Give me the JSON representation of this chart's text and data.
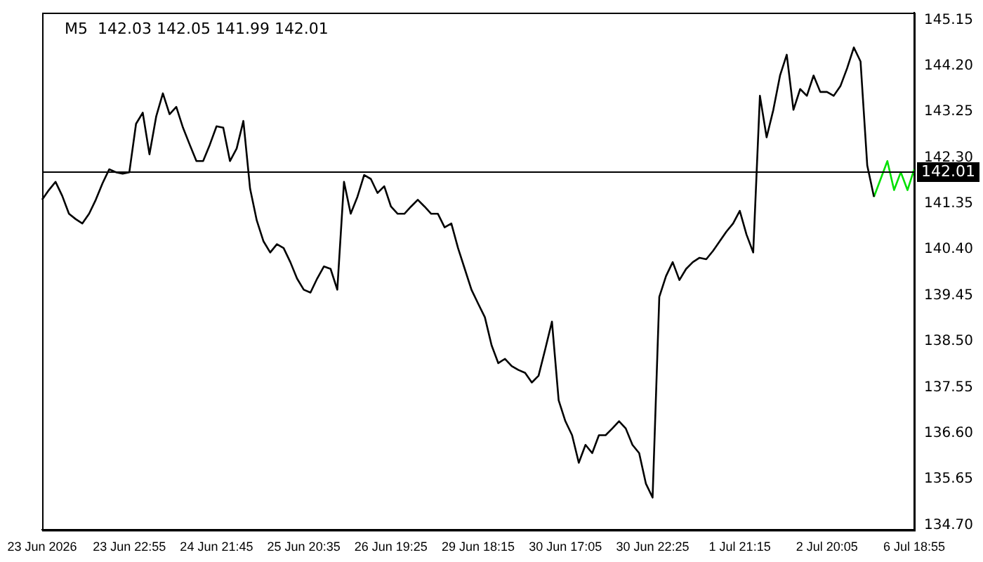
{
  "chart_data": {
    "type": "line",
    "title": "M5  142.03 142.05 141.99 142.01",
    "categories": [
      "23 Jun 2026",
      null,
      null,
      null,
      null,
      null,
      null,
      null,
      null,
      null,
      null,
      null,
      null,
      "23 Jun 22:55",
      null,
      null,
      null,
      null,
      null,
      null,
      null,
      null,
      null,
      null,
      null,
      null,
      "24 Jun 21:45",
      null,
      null,
      null,
      null,
      null,
      null,
      null,
      null,
      null,
      null,
      null,
      null,
      "25 Jun 20:35",
      null,
      null,
      null,
      null,
      null,
      null,
      null,
      null,
      null,
      null,
      null,
      null,
      "26 Jun 19:25",
      null,
      null,
      null,
      null,
      null,
      null,
      null,
      null,
      null,
      null,
      null,
      null,
      "29 Jun 18:15",
      null,
      null,
      null,
      null,
      null,
      null,
      null,
      null,
      null,
      null,
      null,
      null,
      "30 Jun 17:05",
      null,
      null,
      null,
      null,
      null,
      null,
      null,
      null,
      null,
      null,
      null,
      null,
      "30 Jun 22:25",
      null,
      null,
      null,
      null,
      null,
      null,
      null,
      null,
      null,
      null,
      null,
      null,
      "1 Jul 21:15",
      null,
      null,
      null,
      null,
      null,
      null,
      null,
      null,
      null,
      null,
      null,
      null,
      "2 Jul 20:05",
      null,
      null,
      null,
      null,
      null,
      null,
      null,
      null,
      null,
      null,
      null,
      null,
      "6 Jul 18:55"
    ],
    "series": [
      {
        "color": "#000000",
        "values": [
          141.43,
          141.63,
          141.8,
          141.51,
          141.14,
          141.03,
          140.94,
          141.14,
          141.43,
          141.77,
          142.06,
          142.0,
          141.97,
          142.0,
          143.0,
          143.23,
          142.37,
          143.15,
          143.63,
          143.2,
          143.35,
          142.92,
          142.57,
          142.23,
          142.23,
          142.57,
          142.95,
          142.92,
          142.23,
          142.49,
          143.06,
          141.66,
          141.0,
          140.57,
          140.34,
          140.51,
          140.43,
          140.14,
          139.8,
          139.57,
          139.51,
          139.8,
          140.05,
          140.0,
          139.57,
          141.8,
          141.14,
          141.49,
          141.94,
          141.86,
          141.57,
          141.71,
          141.29,
          141.14,
          141.14,
          141.29,
          141.43,
          141.29,
          141.14,
          141.14,
          140.86,
          140.94,
          140.43,
          140.0,
          139.57,
          139.28,
          139.0,
          138.42,
          138.05,
          138.14,
          137.99,
          137.91,
          137.85,
          137.65,
          137.79,
          138.34,
          138.91,
          137.28,
          136.85,
          136.56,
          135.99,
          136.36,
          136.19,
          136.56,
          136.56,
          136.7,
          136.85,
          136.7,
          136.36,
          136.19,
          135.56,
          135.27,
          139.42,
          139.85,
          140.14,
          139.77,
          140.0,
          140.14,
          140.23,
          140.2,
          140.37,
          140.57,
          140.77,
          140.94,
          141.2,
          140.71,
          140.34,
          143.58,
          142.72,
          143.29,
          144.0,
          144.43,
          143.29,
          143.72,
          143.58,
          144.0,
          143.66,
          143.66,
          143.58,
          143.78,
          144.15,
          144.58,
          144.29,
          142.14,
          141.49,
          null,
          null,
          null,
          null,
          null,
          null
        ]
      },
      {
        "color": "#00e000",
        "values": [
          null,
          null,
          null,
          null,
          null,
          null,
          null,
          null,
          null,
          null,
          null,
          null,
          null,
          null,
          null,
          null,
          null,
          null,
          null,
          null,
          null,
          null,
          null,
          null,
          null,
          null,
          null,
          null,
          null,
          null,
          null,
          null,
          null,
          null,
          null,
          null,
          null,
          null,
          null,
          null,
          null,
          null,
          null,
          null,
          null,
          null,
          null,
          null,
          null,
          null,
          null,
          null,
          null,
          null,
          null,
          null,
          null,
          null,
          null,
          null,
          null,
          null,
          null,
          null,
          null,
          null,
          null,
          null,
          null,
          null,
          null,
          null,
          null,
          null,
          null,
          null,
          null,
          null,
          null,
          null,
          null,
          null,
          null,
          null,
          null,
          null,
          null,
          null,
          null,
          null,
          null,
          null,
          null,
          null,
          null,
          null,
          null,
          null,
          null,
          null,
          null,
          null,
          null,
          null,
          null,
          null,
          null,
          null,
          null,
          null,
          null,
          null,
          null,
          null,
          null,
          null,
          null,
          null,
          null,
          null,
          null,
          null,
          null,
          null,
          141.49,
          141.86,
          142.23,
          141.63,
          142.0,
          141.63,
          142.06
        ]
      }
    ],
    "ylim": [
      134.6,
      145.3
    ],
    "yticks": [
      {
        "value": 134.7,
        "label": "134.70"
      },
      135.65,
      {
        "value": 136.6,
        "label": "136.60"
      },
      137.55,
      {
        "value": 138.5,
        "label": "138.50"
      },
      139.45,
      {
        "value": 140.4,
        "label": "140.40"
      },
      141.35,
      {
        "value": 142.3,
        "label": "142.30"
      },
      143.25,
      {
        "value": 144.2,
        "label": "144.20"
      },
      145.15
    ],
    "ref_lines": [
      {
        "axis": "y",
        "value": 142.01,
        "label": "142.01",
        "color": "#000000"
      }
    ],
    "grid": false,
    "legend": false,
    "marker": "none",
    "line_style": "solid"
  }
}
